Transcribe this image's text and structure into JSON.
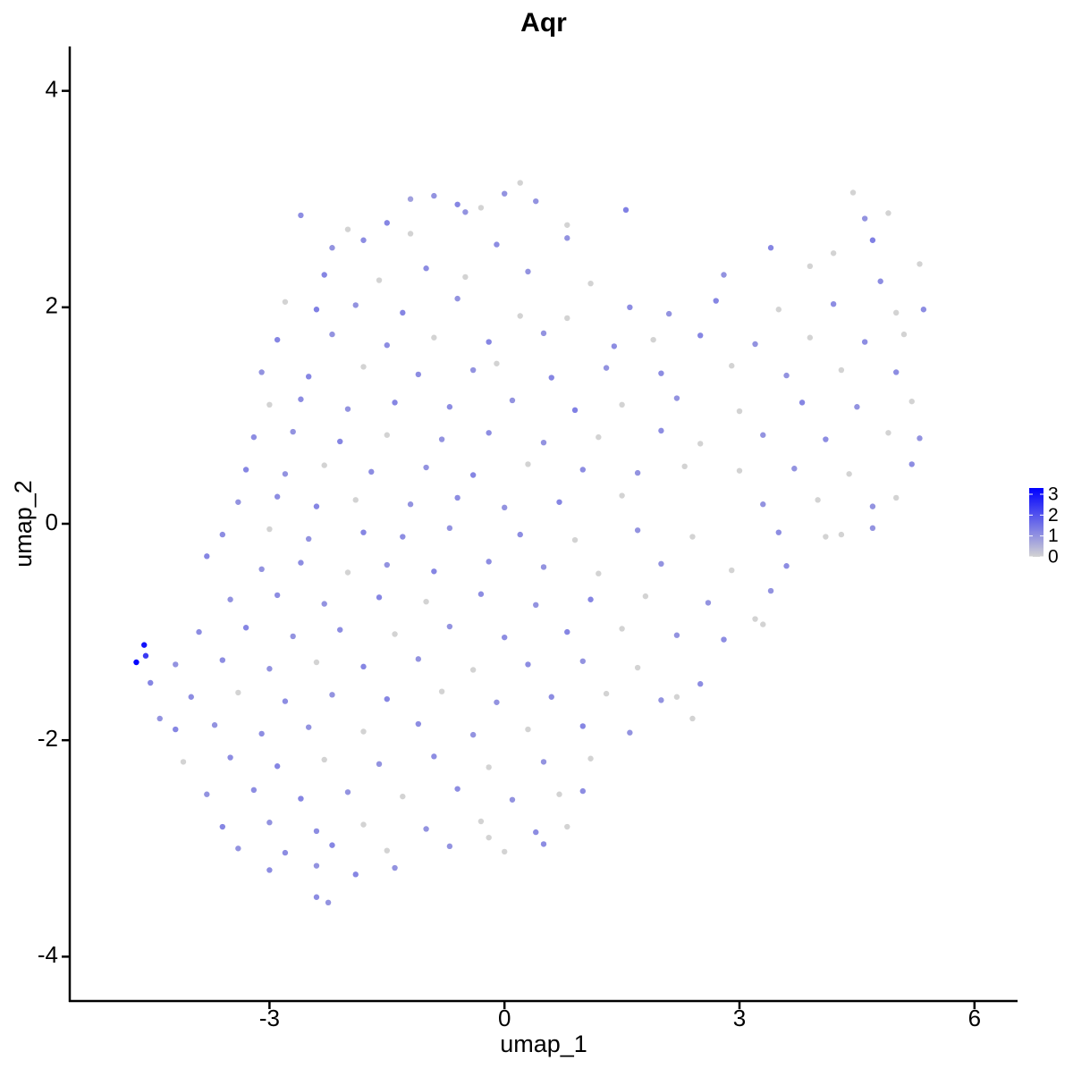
{
  "chart_data": {
    "type": "scatter",
    "title": "Aqr",
    "x_label": "umap_1",
    "y_label": "umap_2",
    "xlim": [
      -5.55,
      6.55
    ],
    "ylim": [
      -4.41,
      4.41
    ],
    "xticks": [
      -3,
      0,
      3,
      6
    ],
    "yticks": [
      -4,
      -2,
      0,
      2,
      4
    ],
    "color_low": "#d3d3d3",
    "color_high": "#0000ff",
    "color_lim": [
      0,
      3.3
    ],
    "color_ticks": [
      0,
      1,
      2,
      3
    ],
    "x": [
      -1.2,
      -0.9,
      -0.6,
      -0.3,
      0,
      0.2,
      0.4,
      4.45,
      -2.6,
      -2.0,
      -1.5,
      -0.5,
      0.8,
      1.55,
      4.6,
      4.9,
      -2.2,
      -1.8,
      -1.2,
      -0.1,
      0.8,
      3.4,
      4.2,
      4.7,
      -2.3,
      -1.6,
      -1.0,
      -0.5,
      0.3,
      1.1,
      2.8,
      3.9,
      4.8,
      5.3,
      -2.8,
      -2.4,
      -1.9,
      -1.3,
      -0.6,
      0.2,
      0.8,
      1.6,
      2.1,
      2.7,
      3.5,
      4.2,
      5.0,
      5.35,
      -2.9,
      -2.2,
      -1.5,
      -0.9,
      -0.2,
      0.5,
      1.4,
      1.9,
      2.5,
      3.2,
      3.9,
      4.6,
      5.1,
      -3.1,
      -2.5,
      -1.8,
      -1.1,
      -0.4,
      -0.1,
      0.6,
      1.3,
      2.0,
      2.9,
      3.6,
      4.3,
      5.0,
      -3.0,
      -2.6,
      -2.0,
      -1.4,
      -0.7,
      0.1,
      0.9,
      1.5,
      2.2,
      3.0,
      3.8,
      4.5,
      5.2,
      -3.2,
      -2.7,
      -2.1,
      -1.5,
      -0.8,
      -0.2,
      0.5,
      1.2,
      2.0,
      2.5,
      3.3,
      4.1,
      4.9,
      5.3,
      -3.3,
      -2.8,
      -2.3,
      -1.7,
      -1.0,
      -0.4,
      0.3,
      1.0,
      1.7,
      2.3,
      3.0,
      3.7,
      4.4,
      5.2,
      -3.4,
      -2.9,
      -2.4,
      -1.9,
      -1.2,
      -0.6,
      0.0,
      0.7,
      1.5,
      3.3,
      4.0,
      4.7,
      5.0,
      -3.6,
      -3.0,
      -2.5,
      -1.8,
      -1.3,
      -0.7,
      0.2,
      0.9,
      1.7,
      2.4,
      3.5,
      4.3,
      4.7,
      -3.8,
      -3.1,
      -2.6,
      -2.0,
      -1.5,
      -0.9,
      -0.2,
      0.5,
      1.2,
      2.0,
      2.9,
      3.6,
      4.1,
      -3.5,
      -2.9,
      -2.3,
      -1.6,
      -1.0,
      -0.3,
      0.4,
      1.1,
      1.8,
      2.6,
      3.2,
      3.4,
      -3.9,
      -3.3,
      -2.7,
      -2.1,
      -1.4,
      -0.7,
      0.0,
      0.8,
      1.5,
      2.2,
      2.8,
      3.3,
      -4.2,
      -3.6,
      -3.0,
      -2.4,
      -1.8,
      -1.1,
      -0.4,
      0.3,
      1.0,
      1.7,
      2.5,
      2.2,
      -4.0,
      -3.4,
      -2.8,
      -2.2,
      -1.5,
      -0.8,
      -0.1,
      0.6,
      1.3,
      2.0,
      2.4,
      -4.2,
      -3.7,
      -3.1,
      -2.5,
      -1.8,
      -1.1,
      -0.4,
      0.3,
      1.0,
      1.6,
      -4.1,
      -3.5,
      -2.9,
      -2.3,
      -1.6,
      -0.9,
      -0.2,
      0.5,
      1.1,
      -3.8,
      -3.2,
      -2.6,
      -2.0,
      -1.3,
      -0.6,
      0.1,
      0.7,
      1.0,
      -3.6,
      -3.0,
      -2.4,
      -1.8,
      -1.0,
      -0.3,
      0.4,
      0.8,
      -3.4,
      -2.8,
      -2.2,
      -1.5,
      -0.7,
      0.0,
      0.5,
      -3.0,
      -2.4,
      -1.9,
      -1.4,
      -0.2,
      -2.4,
      -2.25,
      -4.7,
      -4.6,
      -4.58,
      -4.52,
      -4.4
    ],
    "y": [
      3.0,
      3.03,
      2.95,
      2.92,
      3.05,
      3.15,
      2.98,
      3.06,
      2.85,
      2.72,
      2.78,
      2.88,
      2.76,
      2.9,
      2.82,
      2.87,
      2.55,
      2.62,
      2.68,
      2.58,
      2.64,
      2.55,
      2.5,
      2.62,
      2.3,
      2.25,
      2.36,
      2.28,
      2.33,
      2.22,
      2.3,
      2.38,
      2.24,
      2.4,
      2.05,
      1.98,
      2.02,
      1.95,
      2.08,
      1.92,
      1.9,
      2.0,
      1.94,
      2.06,
      1.98,
      2.03,
      1.95,
      1.98,
      1.7,
      1.75,
      1.65,
      1.72,
      1.68,
      1.76,
      1.64,
      1.7,
      1.74,
      1.66,
      1.72,
      1.68,
      1.75,
      1.4,
      1.36,
      1.45,
      1.38,
      1.42,
      1.48,
      1.35,
      1.44,
      1.39,
      1.46,
      1.37,
      1.42,
      1.4,
      1.1,
      1.15,
      1.06,
      1.12,
      1.08,
      1.14,
      1.05,
      1.1,
      1.16,
      1.04,
      1.12,
      1.08,
      1.13,
      0.8,
      0.85,
      0.76,
      0.82,
      0.78,
      0.84,
      0.75,
      0.8,
      0.86,
      0.74,
      0.82,
      0.78,
      0.84,
      0.79,
      0.5,
      0.46,
      0.54,
      0.48,
      0.52,
      0.45,
      0.55,
      0.5,
      0.47,
      0.53,
      0.49,
      0.51,
      0.46,
      0.55,
      0.2,
      0.25,
      0.16,
      0.22,
      0.18,
      0.24,
      0.15,
      0.2,
      0.26,
      0.18,
      0.22,
      0.16,
      0.24,
      -0.1,
      -0.05,
      -0.14,
      -0.08,
      -0.12,
      -0.04,
      -0.1,
      -0.15,
      -0.06,
      -0.12,
      -0.08,
      -0.1,
      -0.04,
      -0.3,
      -0.42,
      -0.36,
      -0.45,
      -0.38,
      -0.44,
      -0.35,
      -0.4,
      -0.46,
      -0.37,
      -0.43,
      -0.39,
      -0.12,
      -0.7,
      -0.66,
      -0.74,
      -0.68,
      -0.72,
      -0.65,
      -0.75,
      -0.7,
      -0.67,
      -0.73,
      -0.88,
      -0.62,
      -1.0,
      -0.96,
      -1.04,
      -0.98,
      -1.02,
      -0.95,
      -1.05,
      -1.0,
      -0.97,
      -1.03,
      -1.07,
      -0.93,
      -1.3,
      -1.26,
      -1.34,
      -1.28,
      -1.32,
      -1.25,
      -1.35,
      -1.3,
      -1.27,
      -1.33,
      -1.48,
      -1.6,
      -1.6,
      -1.56,
      -1.64,
      -1.58,
      -1.62,
      -1.55,
      -1.65,
      -1.6,
      -1.57,
      -1.63,
      -1.8,
      -1.9,
      -1.86,
      -1.94,
      -1.88,
      -1.92,
      -1.85,
      -1.95,
      -1.9,
      -1.87,
      -1.93,
      -2.2,
      -2.16,
      -2.24,
      -2.18,
      -2.22,
      -2.15,
      -2.25,
      -2.2,
      -2.17,
      -2.5,
      -2.46,
      -2.54,
      -2.48,
      -2.52,
      -2.45,
      -2.55,
      -2.5,
      -2.47,
      -2.8,
      -2.76,
      -2.84,
      -2.78,
      -2.82,
      -2.75,
      -2.85,
      -2.8,
      -3.0,
      -3.04,
      -2.97,
      -3.02,
      -2.98,
      -3.03,
      -2.96,
      -3.2,
      -3.16,
      -3.24,
      -3.18,
      -2.9,
      -3.45,
      -3.5,
      -1.28,
      -1.12,
      -1.22,
      -1.47,
      -1.8
    ],
    "values": [
      0.8,
      1,
      1.2,
      0,
      1,
      0,
      1,
      0,
      1.1,
      0,
      1.2,
      1,
      0,
      1.3,
      1,
      0,
      1,
      1.1,
      0,
      1.1,
      1,
      1.2,
      0,
      1.3,
      1.2,
      0,
      1.1,
      0,
      1,
      0,
      1,
      0,
      1.1,
      0,
      0,
      1.3,
      1,
      1.2,
      1,
      0,
      0,
      1.1,
      1,
      1.2,
      0,
      1.1,
      0,
      1.1,
      1.2,
      1,
      1.1,
      0,
      1.2,
      1,
      1.1,
      0,
      1.2,
      1,
      0,
      1.1,
      0,
      1,
      1.2,
      0,
      1.1,
      1,
      0,
      1.2,
      1,
      1.1,
      0,
      1,
      0,
      1.1,
      0,
      1.1,
      1,
      1.2,
      1.1,
      1,
      1.3,
      0,
      1,
      0,
      1.2,
      1,
      0,
      1.1,
      1,
      1.2,
      0,
      1,
      1.1,
      1,
      0,
      1.1,
      0,
      1,
      1.1,
      0,
      1,
      1.2,
      1,
      0,
      1.1,
      1,
      1.2,
      0,
      1.1,
      1,
      0,
      0,
      1,
      0,
      1.1,
      1,
      1.1,
      1.2,
      0,
      1,
      1.1,
      1,
      1.2,
      0,
      1,
      0,
      1,
      0,
      1.1,
      0,
      1,
      1.2,
      1.1,
      1,
      1.1,
      0,
      1,
      0,
      1.1,
      0,
      1,
      1.2,
      1,
      1.1,
      0,
      1,
      1.2,
      1.1,
      1,
      0,
      1,
      0,
      1.1,
      0,
      1,
      1.1,
      1,
      1.2,
      0,
      1.1,
      1,
      1.2,
      0,
      1,
      0,
      1,
      1.1,
      1.2,
      1,
      1.1,
      0,
      1,
      1.1,
      1.2,
      0,
      1,
      1.1,
      0,
      1,
      1.1,
      1,
      0,
      1.2,
      1,
      0,
      1.1,
      1,
      0,
      1.1,
      0,
      1.1,
      0,
      1.1,
      1,
      1.2,
      0,
      1,
      1.1,
      0,
      1,
      0,
      1.2,
      1,
      1.1,
      1,
      0,
      1.1,
      1,
      0,
      1.2,
      1,
      0,
      1.1,
      1.2,
      0,
      1,
      1.1,
      0,
      1,
      0,
      1,
      1.1,
      1.2,
      1,
      0,
      1.1,
      1,
      0,
      1.1,
      1.2,
      1,
      1.1,
      0,
      1,
      0,
      1.1,
      0,
      1,
      1.1,
      1.2,
      0,
      1,
      0,
      1.1,
      1.1,
      1,
      1.2,
      1,
      0,
      1.1,
      1,
      3.2,
      3,
      2.4,
      1.2,
      1
    ]
  }
}
